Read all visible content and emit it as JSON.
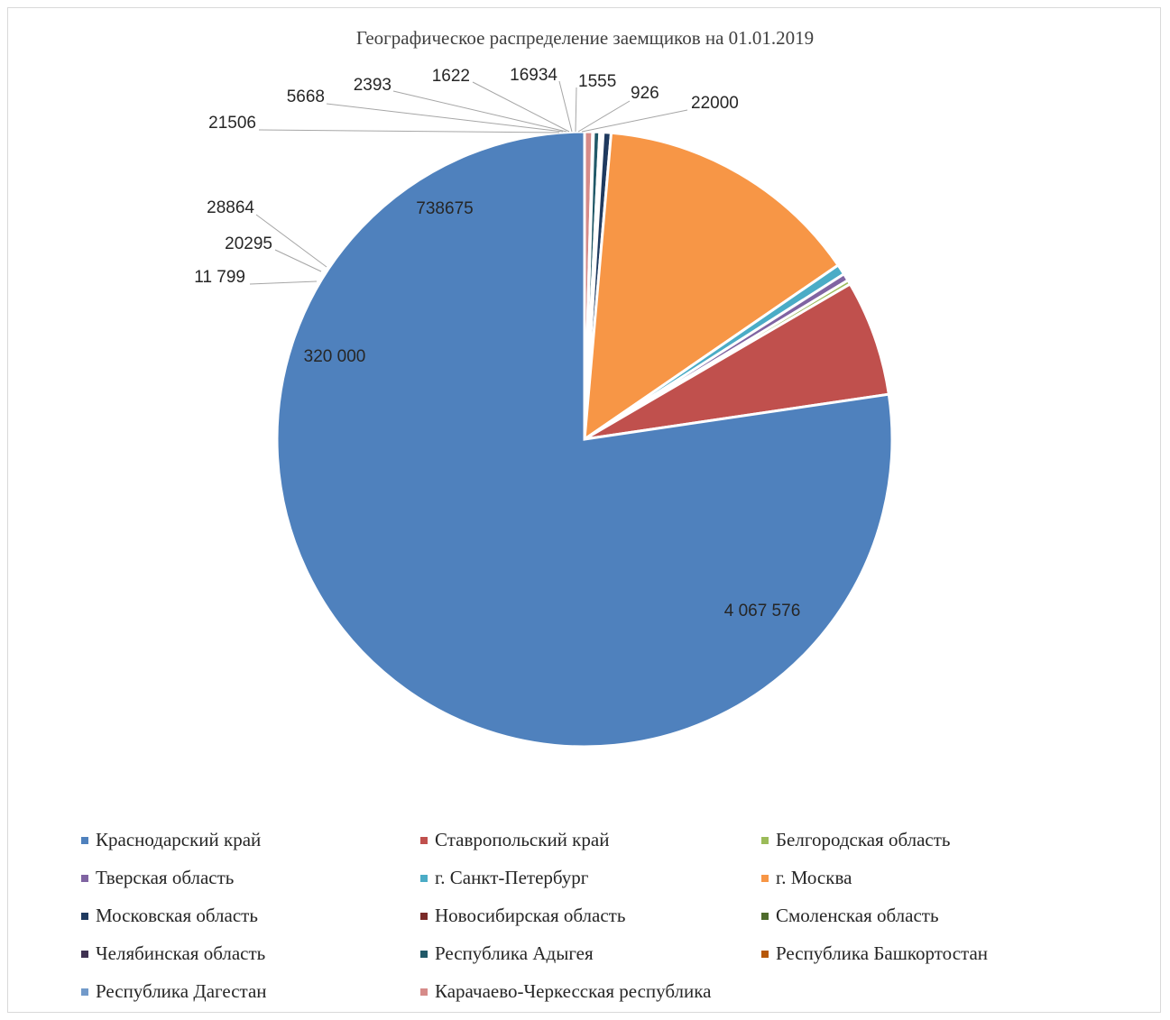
{
  "chart_data": {
    "type": "pie",
    "title": "Географическое распределение  заемщиков  на 01.01.2019",
    "slices": [
      {
        "name": "Краснодарский край",
        "value": 4067576,
        "label": "4 067 576",
        "color": "#4f81bd"
      },
      {
        "name": "Ставропольский край",
        "value": 320000,
        "label": "320 000",
        "color": "#c0504d"
      },
      {
        "name": "Белгородская область",
        "value": 11799,
        "label": "11 799",
        "color": "#9bbb59"
      },
      {
        "name": "Тверская область",
        "value": 20295,
        "label": "20295",
        "color": "#8064a2"
      },
      {
        "name": "г. Санкт-Петербург",
        "value": 28864,
        "label": "28864",
        "color": "#4bacc6"
      },
      {
        "name": "г. Москва",
        "value": 738675,
        "label": "738675",
        "color": "#f79646"
      },
      {
        "name": "Московская область",
        "value": 21506,
        "label": "21506",
        "color": "#1f3a5f"
      },
      {
        "name": "Новосибирская область",
        "value": 5668,
        "label": "5668",
        "color": "#7a2a28"
      },
      {
        "name": "Смоленская область",
        "value": 2393,
        "label": "2393",
        "color": "#4e6b2c"
      },
      {
        "name": "Челябинская область",
        "value": 1622,
        "label": "1622",
        "color": "#3f3151"
      },
      {
        "name": "Республика Адыгея",
        "value": 16934,
        "label": "16934",
        "color": "#215968"
      },
      {
        "name": "Республика Башкортостан",
        "value": 1555,
        "label": "1555",
        "color": "#b65708"
      },
      {
        "name": "Республика Дагестан",
        "value": 926,
        "label": "926",
        "color": "#729aca"
      },
      {
        "name": "Карачаево-Черкесская республика",
        "value": 22000,
        "label": "22000",
        "color": "#d68b89"
      }
    ],
    "legend_position": "bottom"
  }
}
